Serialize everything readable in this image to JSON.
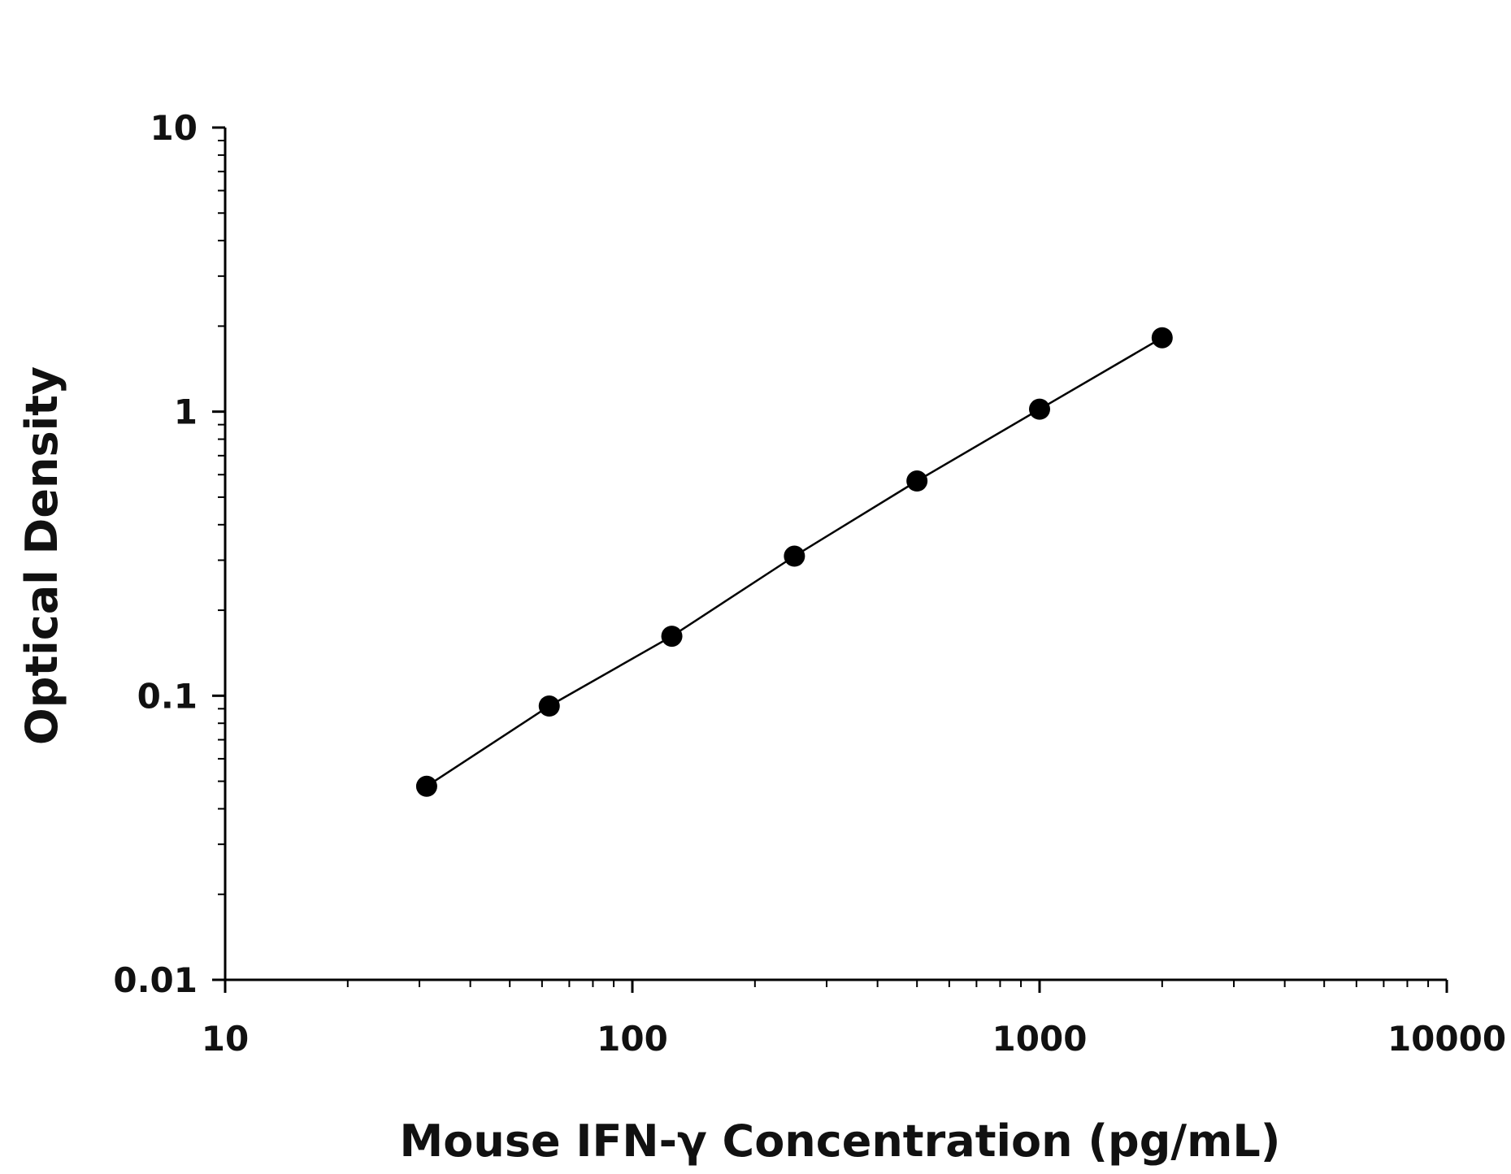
{
  "chart_data": {
    "type": "scatter",
    "title": "",
    "xlabel": "Mouse IFN-γ Concentration (pg/mL)",
    "ylabel": "Optical Density",
    "x_scale": "log",
    "y_scale": "log",
    "xlim": [
      10,
      10000
    ],
    "ylim": [
      0.01,
      10
    ],
    "x_ticks": [
      {
        "value": 10,
        "label": "10"
      },
      {
        "value": 100,
        "label": "100"
      },
      {
        "value": 1000,
        "label": "1000"
      },
      {
        "value": 10000,
        "label": "10000"
      }
    ],
    "y_ticks": [
      {
        "value": 0.01,
        "label": "0.01"
      },
      {
        "value": 0.1,
        "label": "0.1"
      },
      {
        "value": 1,
        "label": "1"
      },
      {
        "value": 10,
        "label": "10"
      }
    ],
    "grid": false,
    "legend": "none",
    "fit_line": true,
    "colors": {
      "points": "#000000",
      "line": "#000000",
      "axes": "#000000"
    },
    "series": [
      {
        "x": [
          31.25,
          62.5,
          125,
          250,
          500,
          1000,
          2000
        ],
        "y": [
          0.048,
          0.092,
          0.162,
          0.31,
          0.57,
          1.02,
          1.82
        ]
      }
    ]
  }
}
